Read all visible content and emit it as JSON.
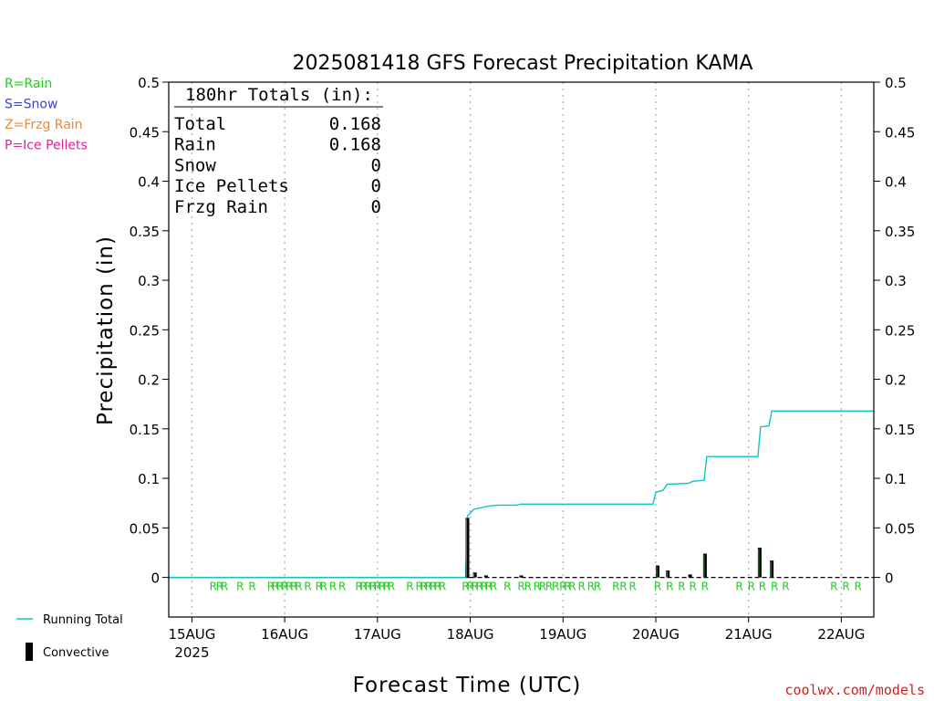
{
  "chart_data": {
    "type": "bar",
    "title": "2025081418 GFS Forecast Precipitation KAMA",
    "xlabel": "Forecast Time (UTC)",
    "ylabel": "Precipitation (in)",
    "ylim": [
      -0.04,
      0.5
    ],
    "xlim": [
      -0.25,
      7.35
    ],
    "yticks": [
      0,
      0.05,
      0.1,
      0.15,
      0.2,
      0.25,
      0.3,
      0.35,
      0.4,
      0.45,
      0.5
    ],
    "ytick_labels": [
      "0",
      "0.05",
      "0.1",
      "0.15",
      "0.2",
      "0.25",
      "0.3",
      "0.35",
      "0.4",
      "0.45",
      "0.5"
    ],
    "xticks": [
      {
        "x": 0,
        "label": "15AUG",
        "sublabel": "2025"
      },
      {
        "x": 1,
        "label": "16AUG",
        "sublabel": ""
      },
      {
        "x": 2,
        "label": "17AUG",
        "sublabel": ""
      },
      {
        "x": 3,
        "label": "18AUG",
        "sublabel": ""
      },
      {
        "x": 4,
        "label": "19AUG",
        "sublabel": ""
      },
      {
        "x": 5,
        "label": "20AUG",
        "sublabel": ""
      },
      {
        "x": 6,
        "label": "21AUG",
        "sublabel": ""
      },
      {
        "x": 7,
        "label": "22AUG",
        "sublabel": ""
      }
    ],
    "grid": true,
    "totals_box": {
      "header": "180hr Totals (in):",
      "rows": [
        {
          "label": "Total",
          "value": "0.168"
        },
        {
          "label": "Rain",
          "value": "0.168"
        },
        {
          "label": "Snow",
          "value": "0"
        },
        {
          "label": "Ice Pellets",
          "value": "0"
        },
        {
          "label": "Frzg Rain",
          "value": "0"
        }
      ]
    },
    "ptype_legend": [
      {
        "text": "R=Rain",
        "color": "#22cc22"
      },
      {
        "text": "S=Snow",
        "color": "#3344dd"
      },
      {
        "text": "Z=Frzg Rain",
        "color": "#ee8833"
      },
      {
        "text": "P=Ice Pellets",
        "color": "#dd2299"
      }
    ],
    "series_legend": [
      {
        "name": "Running Total",
        "color": "#11c4c4",
        "kind": "line"
      },
      {
        "name": "Convective",
        "color": "#000000",
        "kind": "bar"
      }
    ],
    "running_total": {
      "name": "Running Total",
      "color": "#11c4c4",
      "x": [
        -0.25,
        2.95,
        2.97,
        3.0,
        3.03,
        3.05,
        3.1,
        3.15,
        3.2,
        3.3,
        3.5,
        3.55,
        4.0,
        4.5,
        4.97,
        5.0,
        5.08,
        5.12,
        5.35,
        5.4,
        5.52,
        5.55,
        6.1,
        6.13,
        6.22,
        6.25,
        7.35
      ],
      "y": [
        0,
        0,
        0.062,
        0.065,
        0.068,
        0.069,
        0.07,
        0.071,
        0.072,
        0.073,
        0.073,
        0.074,
        0.074,
        0.074,
        0.074,
        0.086,
        0.088,
        0.094,
        0.095,
        0.097,
        0.098,
        0.122,
        0.122,
        0.152,
        0.153,
        0.168,
        0.168
      ]
    },
    "precip_bars": {
      "name": "Convective",
      "x": [
        2.97,
        3.05,
        3.17,
        3.55,
        5.02,
        5.13,
        5.37,
        5.53,
        6.12,
        6.25
      ],
      "y": [
        0.06,
        0.005,
        0.002,
        0.002,
        0.012,
        0.007,
        0.003,
        0.024,
        0.03,
        0.017
      ]
    },
    "precip_type_markers": {
      "symbol": "R",
      "x": [
        0.23,
        0.3,
        0.35,
        0.52,
        0.65,
        0.85,
        0.9,
        0.95,
        1.0,
        1.05,
        1.1,
        1.15,
        1.25,
        1.37,
        1.42,
        1.52,
        1.62,
        1.8,
        1.85,
        1.9,
        1.95,
        2.0,
        2.05,
        2.1,
        2.15,
        2.35,
        2.45,
        2.5,
        2.55,
        2.6,
        2.65,
        2.7,
        2.95,
        3.0,
        3.05,
        3.1,
        3.15,
        3.2,
        3.25,
        3.4,
        3.55,
        3.62,
        3.72,
        3.78,
        3.85,
        3.92,
        4.0,
        4.05,
        4.1,
        4.2,
        4.3,
        4.37,
        4.57,
        4.65,
        4.75,
        5.02,
        5.15,
        5.28,
        5.4,
        5.53,
        5.9,
        6.03,
        6.15,
        6.28,
        6.4,
        6.92,
        7.05,
        7.18
      ]
    },
    "zero_line_dashed_from_x": 3.0,
    "credit": "coolwx.com/models"
  }
}
